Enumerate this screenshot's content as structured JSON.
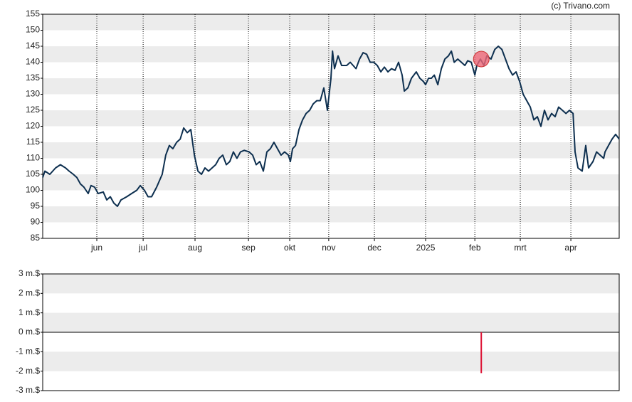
{
  "chart_data": [
    {
      "type": "line",
      "annotation": "(c) Trivano.com",
      "color": "#0d2f4f",
      "xlim": [
        0,
        260
      ],
      "ylim": [
        85,
        155
      ],
      "yticks": [
        85,
        90,
        95,
        100,
        105,
        110,
        115,
        120,
        125,
        130,
        135,
        140,
        145,
        150,
        155
      ],
      "xticks": [
        {
          "value": 24.4,
          "label": "jun"
        },
        {
          "value": 45.3,
          "label": "jul"
        },
        {
          "value": 68.7,
          "label": "aug"
        },
        {
          "value": 92.8,
          "label": "sep"
        },
        {
          "value": 111.4,
          "label": "okt"
        },
        {
          "value": 129,
          "label": "nov"
        },
        {
          "value": 149.6,
          "label": "dec"
        },
        {
          "value": 172.7,
          "label": "2025"
        },
        {
          "value": 194.9,
          "label": "feb"
        },
        {
          "value": 215.4,
          "label": "mrt"
        },
        {
          "value": 238.2,
          "label": "apr"
        }
      ],
      "bands": true,
      "vgrid": true,
      "x": [
        0,
        1,
        3.2,
        5.8,
        8,
        10.3,
        11.9,
        13.8,
        15.4,
        17,
        18.6,
        20.5,
        21.8,
        23.4,
        25,
        27.3,
        28.9,
        30.5,
        32.1,
        33.7,
        35.3,
        37.9,
        40.1,
        42.4,
        44,
        45.9,
        47.5,
        49.1,
        51.4,
        53.9,
        55.5,
        57.1,
        58.7,
        60.4,
        62,
        63.6,
        65.2,
        66.8,
        68.4,
        70,
        71.6,
        73.2,
        74.8,
        76.4,
        78,
        79.6,
        81.2,
        82.8,
        84.4,
        86,
        87.6,
        89.2,
        90.9,
        93.1,
        94.7,
        96.3,
        97.9,
        99.5,
        101.1,
        102.7,
        104.3,
        105.9,
        107.5,
        109.1,
        110.8,
        111.7,
        112.7,
        114,
        115.6,
        117.2,
        118.8,
        120.4,
        122,
        123.6,
        125.2,
        126.8,
        128.4,
        130,
        130.7,
        131.6,
        133.2,
        134.8,
        137.1,
        138.7,
        141.3,
        142.9,
        144.5,
        146.1,
        147.7,
        149.3,
        150.9,
        152.5,
        154.1,
        155.7,
        157.3,
        158.9,
        160.5,
        162.1,
        163.1,
        164.7,
        166.3,
        168.5,
        170.1,
        171.7,
        172.7,
        174,
        175.3,
        176.6,
        178.2,
        179.8,
        181.4,
        183,
        184.3,
        185.6,
        187.2,
        188.8,
        190.4,
        191.7,
        193.3,
        194.9,
        195.8,
        197.4,
        199,
        200.3,
        202.2,
        203.9,
        205.5,
        207.1,
        208.7,
        210.3,
        211.9,
        213.5,
        215.1,
        216.7,
        218.3,
        219.9,
        221.5,
        223.1,
        224.7,
        226.3,
        227.9,
        229.5,
        231.1,
        232.7,
        234.4,
        236,
        237.6,
        239.2,
        240.1,
        241.4,
        243.3,
        244.9,
        246.2,
        248.2,
        249.8,
        251.4,
        253,
        253.6,
        255.2,
        256.8,
        258.4,
        260
      ],
      "values": [
        104,
        106,
        105,
        107,
        108,
        107,
        106,
        105,
        104,
        102,
        101,
        99,
        101.5,
        101,
        99,
        99.5,
        97,
        98,
        96,
        95,
        97,
        98,
        99,
        100,
        101.5,
        100,
        98,
        98,
        101,
        105,
        111,
        114,
        113,
        115,
        116,
        119.5,
        118,
        119,
        111,
        106,
        105,
        107,
        106,
        107,
        108,
        110,
        111,
        108,
        109,
        112,
        110,
        112,
        112.5,
        112,
        111,
        108,
        109,
        106,
        112,
        113,
        115,
        113,
        111,
        112,
        111,
        109,
        113,
        114,
        119,
        122,
        124,
        125,
        127,
        128,
        128,
        132,
        125,
        135,
        143.5,
        138,
        142,
        139,
        139,
        140,
        138,
        141,
        143,
        142.5,
        140,
        140,
        139,
        137,
        138.5,
        137,
        138,
        137.5,
        140,
        136,
        131,
        132,
        135,
        137,
        135,
        134,
        133,
        135,
        135,
        136,
        133,
        138,
        141,
        142,
        143.5,
        140,
        141,
        140,
        139,
        140.5,
        140,
        136,
        139,
        141,
        139,
        142,
        141,
        144,
        145,
        144,
        141,
        138,
        136,
        137,
        134,
        130,
        128,
        126,
        122,
        123,
        120,
        125,
        122,
        124,
        123,
        126,
        125,
        124,
        125,
        124,
        112,
        107,
        106,
        114,
        107,
        109,
        112,
        111,
        110,
        112,
        114,
        116,
        117.5,
        116
      ],
      "highlight": {
        "x": 197.8,
        "y": 141,
        "color": "#ee6677"
      }
    },
    {
      "type": "bar",
      "xlim": [
        0,
        260
      ],
      "ylim": [
        -3,
        3
      ],
      "bands": true,
      "color": "#dd1133",
      "yticks": [
        {
          "value": -3,
          "label": "-3 m.$"
        },
        {
          "value": -2,
          "label": "-2 m.$"
        },
        {
          "value": -1,
          "label": "-1 m.$"
        },
        {
          "value": 0,
          "label": "0 m.$"
        },
        {
          "value": 1,
          "label": "1 m.$"
        },
        {
          "value": 2,
          "label": "2 m.$"
        },
        {
          "value": 3,
          "label": "3 m.$"
        }
      ],
      "x": [
        197.8
      ],
      "values": [
        -2.1
      ]
    }
  ]
}
